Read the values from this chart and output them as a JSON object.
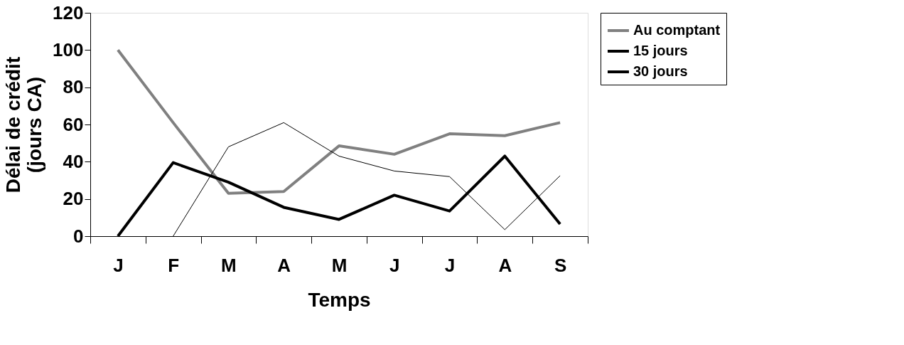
{
  "chart_data": {
    "type": "line",
    "xlabel": "Temps",
    "ylabel": "Délai de crédit\n(jours CA)",
    "categories": [
      "J",
      "F",
      "M",
      "A",
      "M",
      "J",
      "J",
      "A",
      "S"
    ],
    "series": [
      {
        "name": "Au comptant",
        "color": "#808080",
        "values": [
          100,
          61,
          23,
          24,
          48.5,
          44,
          55,
          54,
          61
        ]
      },
      {
        "name": "15 jours",
        "color": "#000000",
        "values": [
          0,
          39.5,
          29,
          15.5,
          9,
          22,
          13.5,
          43,
          6.5
        ]
      },
      {
        "name": "30 jours",
        "color": "#000000",
        "values": [
          null,
          0,
          48,
          61,
          43,
          35,
          32,
          3.5,
          32.5
        ]
      }
    ],
    "ylim": [
      0,
      120
    ],
    "yticks": [
      0,
      20,
      40,
      60,
      80,
      100,
      120
    ],
    "grid": false,
    "legend": "right",
    "marker": "none"
  }
}
